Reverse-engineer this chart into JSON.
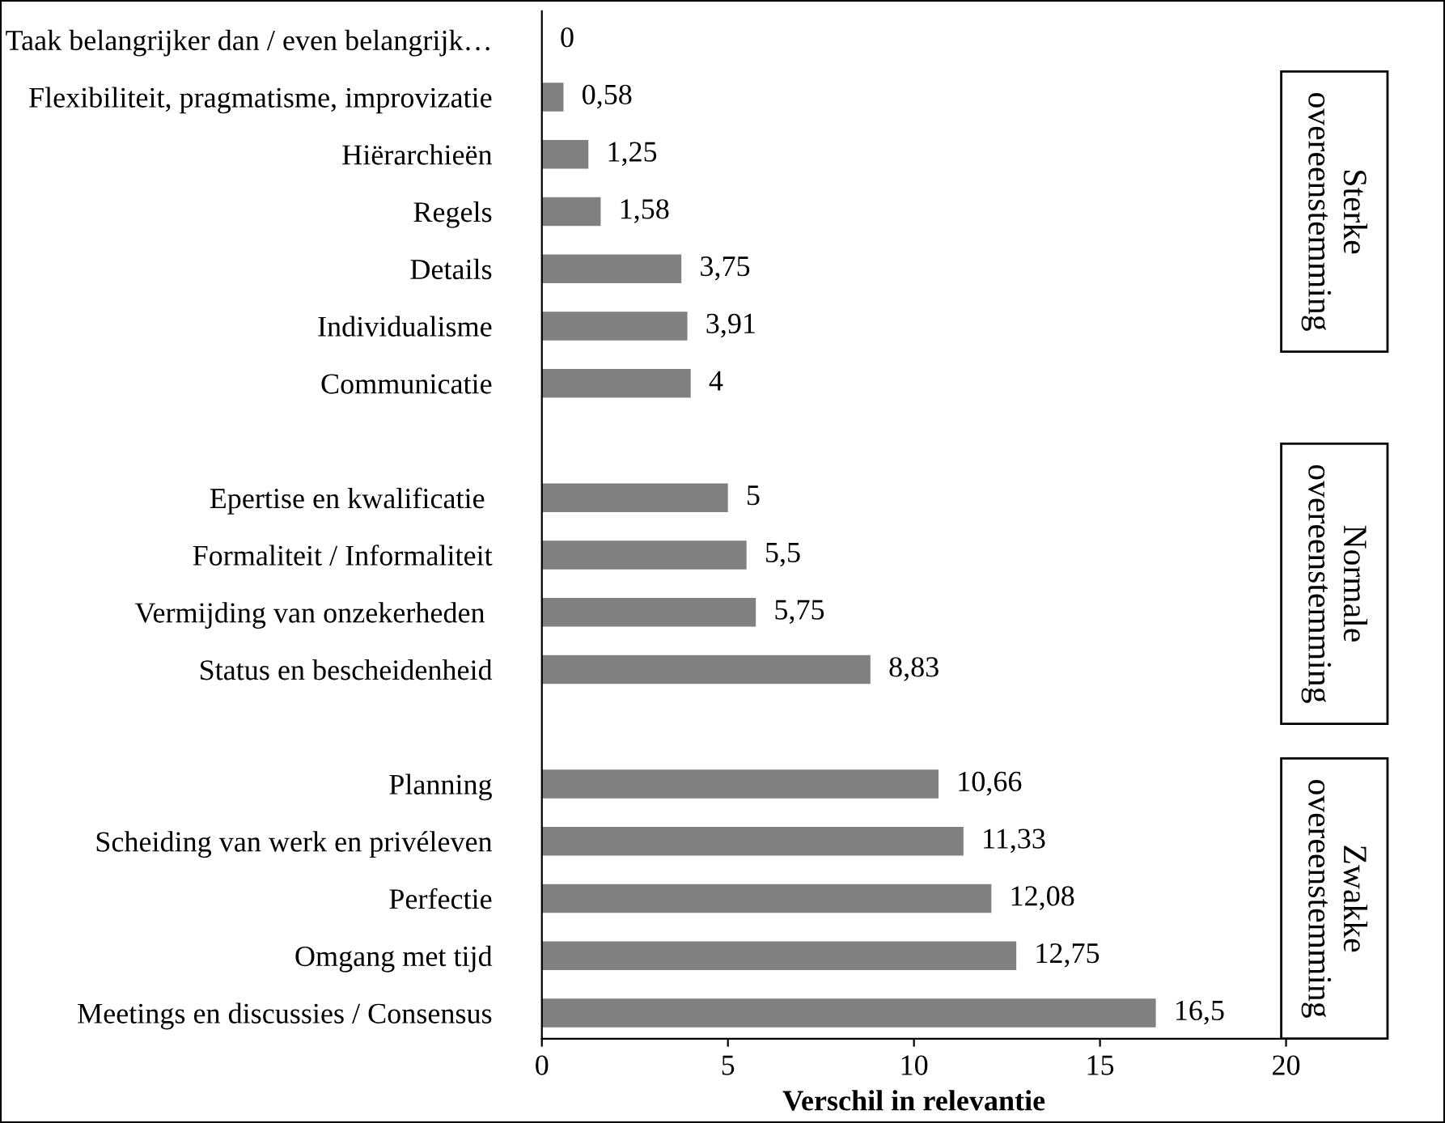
{
  "chart_data": {
    "type": "bar",
    "orientation": "horizontal",
    "xlabel": "Verschil in relevantie",
    "categories": [
      "Taak belangrijker dan / even belangrijk…",
      "Flexibiliteit, pragmatisme, improvizatie",
      "Hiërarchieën",
      "Regels",
      "Details",
      "Individualisme",
      "Communicatie",
      null,
      "Epertise en kwalificatie ",
      "Formaliteit / Informaliteit",
      "Vermijding van onzekerheden ",
      "Status en bescheidenheid",
      null,
      "Planning",
      "Scheiding van werk en privéleven",
      "Perfectie",
      "Omgang met tijd",
      "Meetings en discussies / Consensus"
    ],
    "values": [
      0,
      0.58,
      1.25,
      1.58,
      3.75,
      3.91,
      4,
      null,
      5,
      5.5,
      5.75,
      8.83,
      null,
      10.66,
      11.33,
      12.08,
      12.75,
      16.5
    ],
    "value_labels": [
      "0",
      "0,58",
      "1,25",
      "1,58",
      "3,75",
      "3,91",
      "4",
      null,
      "5",
      "5,5",
      "5,75",
      "8,83",
      null,
      "10,66",
      "11,33",
      "12,08",
      "12,75",
      "16,5"
    ],
    "color": "#808080",
    "xlim": [
      0,
      20
    ],
    "xticks": [
      0,
      5,
      10,
      15,
      20
    ],
    "grid": false,
    "annotations": [
      "Sterke\novereenstemming",
      "Normale\novereenstemming",
      "Zwakke\novereenstemming"
    ]
  }
}
